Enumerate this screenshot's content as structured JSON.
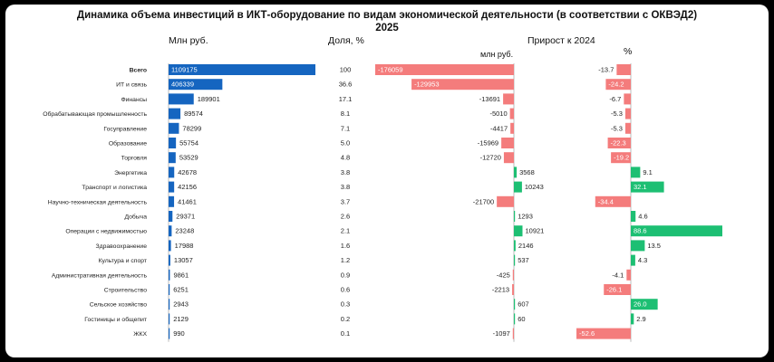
{
  "title_line1": "Динамика объема инвестиций в ИКТ-оборудование по видам экономической деятельности (в соответствии с ОКВЭД2)",
  "title_line2": "2025",
  "headers": {
    "mln": "Млн руб.",
    "share": "Доля, %",
    "growth": "Прирост к 2024",
    "growth_mln": "млн руб.",
    "growth_pct": "%"
  },
  "colors": {
    "blue": "#1565c0",
    "green": "#1dbf73",
    "red": "#f47c7c",
    "text": "#222222"
  },
  "chart_data": {
    "type": "bar",
    "categories": [
      "Всего",
      "ИТ и связь",
      "Финансы",
      "Обрабатывающая промышленность",
      "Госуправление",
      "Образование",
      "Торговля",
      "Энергетика",
      "Транспорт и логистика",
      "Научно-техническая деятельность",
      "Добыча",
      "Операции с недвижимостью",
      "Здравоохранение",
      "Культура и спорт",
      "Административная деятельность",
      "Строительство",
      "Сельское хозяйство",
      "Гостиницы и общепит",
      "ЖКХ"
    ],
    "series": [
      {
        "name": "Млн руб.",
        "values": [
          1109175,
          406339,
          189901,
          89574,
          78299,
          55754,
          53529,
          42678,
          42156,
          41461,
          29371,
          23248,
          17988,
          13057,
          9861,
          6251,
          2943,
          2129,
          990
        ]
      },
      {
        "name": "Доля, %",
        "values": [
          "100",
          "36.6",
          "17.1",
          "8.1",
          "7.1",
          "5.0",
          "4.8",
          "3.8",
          "3.8",
          "3.7",
          "2.6",
          "2.1",
          "1.6",
          "1.2",
          "0.9",
          "0.6",
          "0.3",
          "0.2",
          "0.1"
        ]
      },
      {
        "name": "млн руб.",
        "values": [
          -176059,
          -129953,
          -13691,
          -5010,
          -4417,
          -15969,
          -12720,
          3568,
          10243,
          -21700,
          1293,
          10921,
          2146,
          537,
          -425,
          -2213,
          607,
          60,
          -1097
        ]
      },
      {
        "name": "%",
        "values": [
          -13.7,
          -24.2,
          -6.7,
          -5.3,
          -5.3,
          -22.3,
          -19.2,
          9.1,
          32.1,
          -34.4,
          4.6,
          88.6,
          13.5,
          4.3,
          -4.1,
          -26.1,
          26.0,
          2.9,
          -52.6
        ]
      }
    ]
  }
}
